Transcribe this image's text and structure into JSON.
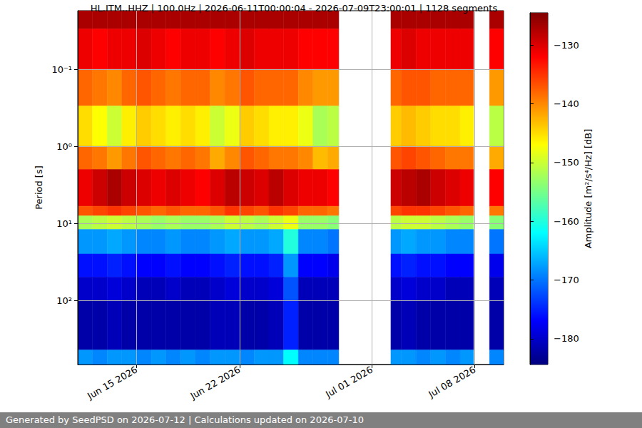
{
  "chart_data": {
    "type": "heatmap",
    "title": "HL.ITM..HHZ | 100.0Hz | 2026-06-11T00:00:04 - 2026-07-09T23:00:01 | 1128 segments",
    "ylabel": "Period [s]",
    "annotations": [
      "Generated by SeedPSD on 2026-07-12 | Calculations updated on 2026-07-10"
    ],
    "log": "y",
    "grid": true,
    "xlim": [
      "2026-06-11T00:00:04",
      "2026-07-09T23:00:01"
    ],
    "xticks": [
      {
        "value": "2026-06-15T00:00:00",
        "label": "Jun 15 2026"
      },
      {
        "value": "2026-06-22T00:00:00",
        "label": "Jun 22 2026"
      },
      {
        "value": "2026-07-01T00:00:00",
        "label": "Jul 01 2026"
      },
      {
        "value": "2026-07-08T00:00:00",
        "label": "Jul 08 2026"
      }
    ],
    "ylim": [
      0.0174,
      680
    ],
    "yticks": [
      {
        "value": 0.1,
        "label": "10⁻¹"
      },
      {
        "value": 1,
        "label": "10⁰"
      },
      {
        "value": 10,
        "label": "10¹"
      },
      {
        "value": 100,
        "label": "10²"
      }
    ],
    "x_edges": [
      "2026-06-11T00:00:00",
      "2026-06-12T00:00:00",
      "2026-06-13T00:00:00",
      "2026-06-14T00:00:00",
      "2026-06-15T00:00:00",
      "2026-06-16T00:00:00",
      "2026-06-17T00:00:00",
      "2026-06-18T00:00:00",
      "2026-06-19T00:00:00",
      "2026-06-20T00:00:00",
      "2026-06-21T00:00:00",
      "2026-06-22T00:00:00",
      "2026-06-23T00:00:00",
      "2026-06-24T00:00:00",
      "2026-06-25T00:00:00",
      "2026-06-26T00:00:00",
      "2026-06-27T00:00:00",
      "2026-06-28T00:00:00",
      "2026-06-28T18:00:00",
      "2026-07-02T07:00:00",
      "2026-07-03T00:00:00",
      "2026-07-04T00:00:00",
      "2026-07-05T00:00:00",
      "2026-07-06T00:00:00",
      "2026-07-07T00:00:00",
      "2026-07-07T22:00:00",
      "2026-07-09T00:00:00",
      "2026-07-10T00:00:00"
    ],
    "y_edges": [
      0.0174,
      0.03,
      0.1,
      0.3,
      1,
      2,
      6,
      8,
      12,
      25,
      50,
      100,
      440,
      680
    ],
    "cells": [
      [
        -127,
        -127,
        -127,
        -127,
        -127,
        -127,
        -127,
        -127,
        -127,
        -127,
        -127,
        -127,
        -127,
        -127,
        -127,
        -127,
        -127,
        -127,
        null,
        -127,
        -127,
        -127,
        -127,
        -127,
        -127,
        null,
        -127
      ],
      [
        -131,
        -132,
        -131,
        -131,
        -130,
        -131,
        -132,
        -131,
        -131,
        -132,
        -131,
        -130,
        -131,
        -131,
        -131,
        -132,
        -132,
        -132,
        null,
        -131,
        -130,
        -131,
        -131,
        -131,
        -131,
        null,
        -132
      ],
      [
        -138,
        -139,
        -140,
        -138,
        -137,
        -138,
        -139,
        -138,
        -138,
        -140,
        -139,
        -137,
        -138,
        -138,
        -138,
        -140,
        -141,
        -141,
        null,
        -138,
        -137,
        -137,
        -138,
        -138,
        -138,
        null,
        -141
      ],
      [
        -145,
        -147,
        -150,
        -146,
        -144,
        -145,
        -146,
        -145,
        -146,
        -150,
        -148,
        -144,
        -145,
        -146,
        -146,
        -148,
        -152,
        -151,
        null,
        -144,
        -143,
        -144,
        -145,
        -145,
        -146,
        null,
        -151
      ],
      [
        -138,
        -139,
        -141,
        -139,
        -137,
        -138,
        -139,
        -138,
        -139,
        -142,
        -140,
        -137,
        -138,
        -139,
        -139,
        -140,
        -143,
        -142,
        null,
        -137,
        -136,
        -137,
        -138,
        -139,
        -139,
        null,
        -142
      ],
      [
        -131,
        -129,
        -127,
        -129,
        -130,
        -131,
        -130,
        -131,
        -132,
        -130,
        -128,
        -129,
        -130,
        -128,
        -130,
        -131,
        -131,
        -132,
        null,
        -129,
        -128,
        -127,
        -129,
        -130,
        -131,
        null,
        -132
      ],
      [
        -137,
        -136,
        -135,
        -136,
        -137,
        -138,
        -137,
        -138,
        -138,
        -137,
        -135,
        -136,
        -137,
        -135,
        -136,
        -138,
        -138,
        -139,
        null,
        -136,
        -135,
        -135,
        -136,
        -137,
        -138,
        null,
        -139
      ],
      [
        -152,
        -151,
        -150,
        -151,
        -152,
        -153,
        -152,
        -153,
        -153,
        -152,
        -150,
        -151,
        -152,
        -150,
        -148,
        -153,
        -153,
        -154,
        null,
        -151,
        -150,
        -150,
        -151,
        -152,
        -153,
        null,
        -154
      ],
      [
        -168,
        -168,
        -167,
        -168,
        -169,
        -169,
        -168,
        -169,
        -169,
        -168,
        -167,
        -168,
        -168,
        -167,
        -160,
        -169,
        -169,
        -170,
        null,
        -168,
        -167,
        -168,
        -168,
        -169,
        -169,
        null,
        -170
      ],
      [
        -176,
        -176,
        -175,
        -176,
        -177,
        -177,
        -176,
        -177,
        -177,
        -176,
        -175,
        -176,
        -176,
        -175,
        -168,
        -177,
        -177,
        -178,
        null,
        -176,
        -175,
        -176,
        -176,
        -177,
        -177,
        null,
        -178
      ],
      [
        -180,
        -180,
        -179,
        -180,
        -181,
        -181,
        -180,
        -181,
        -181,
        -180,
        -179,
        -180,
        -180,
        -179,
        -172,
        -181,
        -181,
        -181,
        null,
        -180,
        -179,
        -180,
        -180,
        -181,
        -181,
        null,
        -181
      ],
      [
        -182,
        -182,
        -181,
        -182,
        -182,
        -182,
        -182,
        -182,
        -182,
        -181,
        -181,
        -182,
        -182,
        -181,
        -175,
        -182,
        -182,
        -182,
        null,
        -182,
        -181,
        -182,
        -182,
        -182,
        -182,
        null,
        -182
      ],
      [
        -168,
        -169,
        -168,
        -168,
        -169,
        -168,
        -169,
        -168,
        -169,
        -168,
        -168,
        -169,
        -168,
        -168,
        -162,
        -169,
        -169,
        -169,
        null,
        -168,
        -168,
        -169,
        -168,
        -169,
        -168,
        null,
        -169
      ]
    ],
    "colorbar": {
      "label": "Amplitude [m²/s⁴/Hz] [dB]",
      "range": [
        -184.4,
        -124.5
      ],
      "ticks": [
        {
          "value": -130,
          "label": "−130"
        },
        {
          "value": -140,
          "label": "−140"
        },
        {
          "value": -150,
          "label": "−150"
        },
        {
          "value": -160,
          "label": "−160"
        },
        {
          "value": -170,
          "label": "−170"
        },
        {
          "value": -180,
          "label": "−180"
        }
      ]
    }
  }
}
